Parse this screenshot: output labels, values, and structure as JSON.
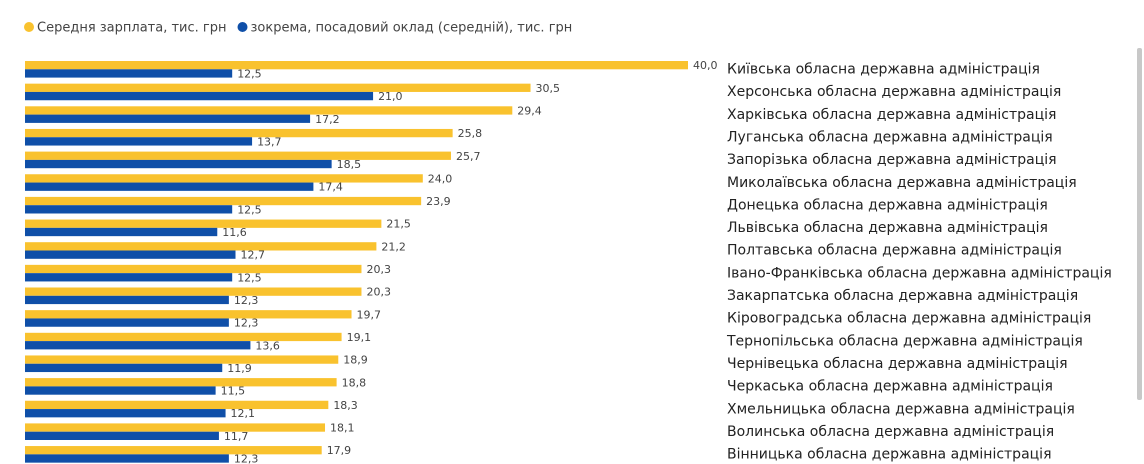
{
  "chart_data": {
    "type": "bar",
    "orientation": "horizontal",
    "categories": [
      "Київська обласна державна адміністрація",
      "Херсонська обласна державна адміністрація",
      "Харківська обласна державна адміністрація",
      "Луганська обласна державна адміністрація",
      "Запорізька обласна державна адміністрація",
      "Миколаївська обласна державна адміністрація",
      "Донецька обласна державна адміністрація",
      "Львівська обласна державна адміністрація",
      "Полтавська обласна державна адміністрація",
      "Івано-Франківська обласна державна адміністрація",
      "Закарпатська обласна державна адміністрація",
      "Кіровоградська обласна державна адміністрація",
      "Тернопільська обласна державна адміністрація",
      "Чернівецька обласна державна адміністрація",
      "Черкаська обласна державна адміністрація",
      "Хмельницька обласна державна адміністрація",
      "Волинська обласна державна адміністрація",
      "Вінницька обласна державна адміністрація"
    ],
    "series": [
      {
        "name": "Середня зарплата, тис. грн",
        "color": "#F9C22E",
        "values": [
          40.0,
          30.5,
          29.4,
          25.8,
          25.7,
          24.0,
          23.9,
          21.5,
          21.2,
          20.3,
          20.3,
          19.7,
          19.1,
          18.9,
          18.8,
          18.3,
          18.1,
          17.9
        ],
        "value_labels": [
          "40,0",
          "30,5",
          "29,4",
          "25,8",
          "25,7",
          "24,0",
          "23,9",
          "21,5",
          "21,2",
          "20,3",
          "20,3",
          "19,7",
          "19,1",
          "18,9",
          "18,8",
          "18,3",
          "18,1",
          "17,9"
        ]
      },
      {
        "name": "зокрема, посадовий оклад (середній), тис. грн",
        "color": "#0F4FA8",
        "values": [
          12.5,
          21.0,
          17.2,
          13.7,
          18.5,
          17.4,
          12.5,
          11.6,
          12.7,
          12.5,
          12.3,
          12.3,
          13.6,
          11.9,
          11.5,
          12.1,
          11.7,
          12.3
        ],
        "value_labels": [
          "12,5",
          "21,0",
          "17,2",
          "13,7",
          "18,5",
          "17,4",
          "12,5",
          "11,6",
          "12,7",
          "12,5",
          "12,3",
          "12,3",
          "13,6",
          "11,9",
          "11,5",
          "12,1",
          "11,7",
          "12,3"
        ]
      }
    ],
    "xlim": [
      0,
      40
    ],
    "legend": "top-left"
  }
}
